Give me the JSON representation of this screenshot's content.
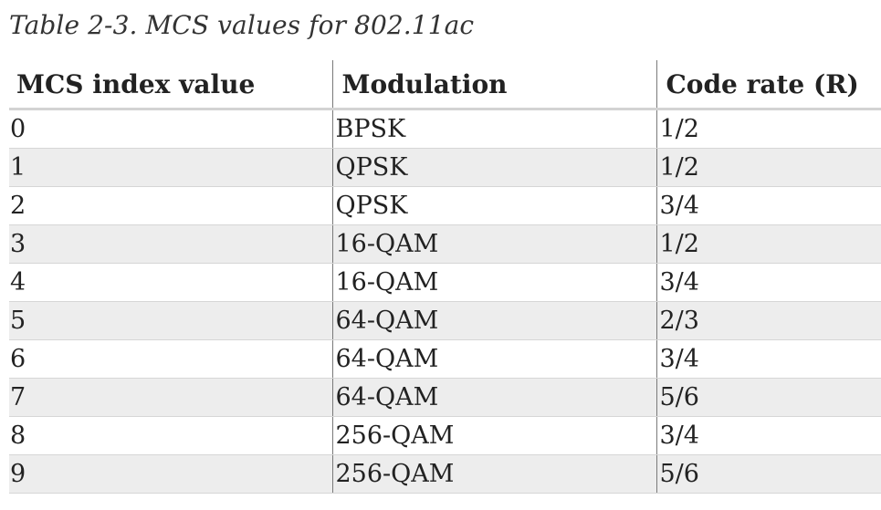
{
  "caption": "Table 2-3. MCS values for 802.11ac",
  "table": {
    "headers": [
      "MCS index value",
      "Modulation",
      "Code rate (R)"
    ],
    "rows": [
      [
        "0",
        "BPSK",
        "1/2"
      ],
      [
        "1",
        "QPSK",
        "1/2"
      ],
      [
        "2",
        "QPSK",
        "3/4"
      ],
      [
        "3",
        "16-QAM",
        "1/2"
      ],
      [
        "4",
        "16-QAM",
        "3/4"
      ],
      [
        "5",
        "64-QAM",
        "2/3"
      ],
      [
        "6",
        "64-QAM",
        "3/4"
      ],
      [
        "7",
        "64-QAM",
        "5/6"
      ],
      [
        "8",
        "256-QAM",
        "3/4"
      ],
      [
        "9",
        "256-QAM",
        "5/6"
      ]
    ]
  },
  "colors": {
    "stripe": "#ededed",
    "divider": "#7a7a7a",
    "header_rule": "#d3d3d3",
    "text": "#222222"
  }
}
